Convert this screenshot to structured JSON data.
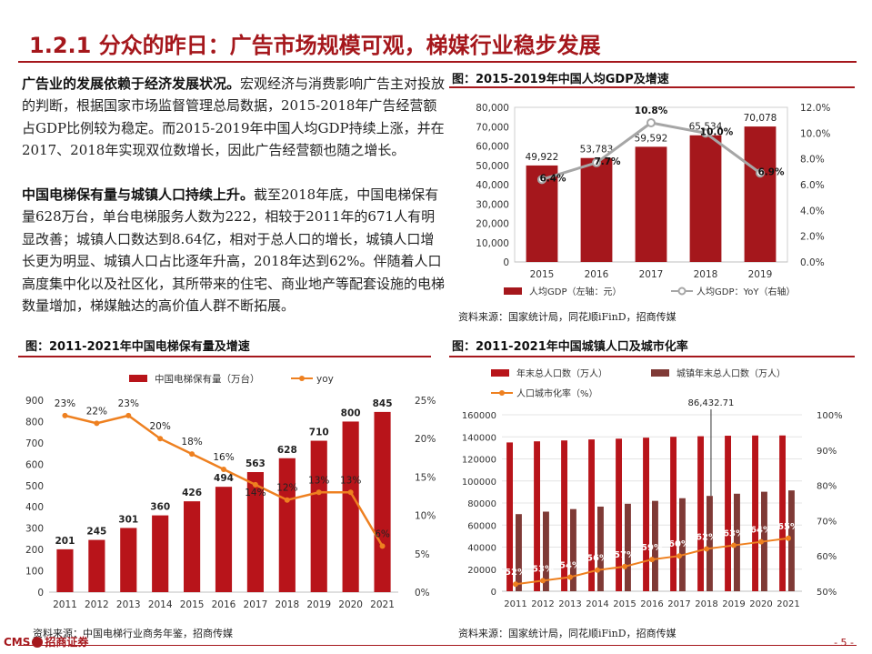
{
  "page": {
    "title": "1.2.1 分众的昨日：广告市场规模可观，梯媒行业稳步发展",
    "page_number": "- 5 -",
    "logo_text": "CMS",
    "logo_name": "招商证券"
  },
  "text": {
    "para1_bold": "广告业的发展依赖于经济发展状况。",
    "para1_rest": "宏观经济与消费影响广告主对投放的判断，根据国家市场监督管理总局数据，2015-2018年广告经营额占GDP比例较为稳定。而2015-2019年中国人均GDP持续上涨，并在2017、2018年实现双位数增长，因此广告经营额也随之增长。",
    "para2_bold": "中国电梯保有量与城镇人口持续上升。",
    "para2_rest": "截至2018年底，中国电梯保有量628万台，单台电梯服务人数为222，相较于2011年的671人有明显改善；城镇人口数达到8.64亿，相对于总人口的增长，城镇人口增长更为明显、城镇人口占比逐年升高，2018年达到62%。伴随着人口高度集中化以及社区化，其所带来的住宅、商业地产等配套设施的电梯数量增加，梯媒触达的高价值人群不断拓展。"
  },
  "chart_data": [
    {
      "id": "gdp",
      "type": "bar",
      "title": "图：2015-2019年中国人均GDP及增速",
      "categories": [
        "2015",
        "2016",
        "2017",
        "2018",
        "2019"
      ],
      "series": [
        {
          "name": "人均GDP（左轴：元）",
          "type": "bar",
          "axis": "left",
          "values": [
            49922,
            53783,
            59592,
            65534,
            70078
          ],
          "labels": [
            "49,922",
            "53,783",
            "59,592",
            "65,534",
            "70,078"
          ],
          "color": "#a5171c"
        },
        {
          "name": "人均GDP：YoY（右轴）",
          "type": "line",
          "axis": "right",
          "values": [
            6.4,
            7.7,
            10.8,
            10.0,
            6.9
          ],
          "labels": [
            "6.4%",
            "7.7%",
            "10.8%",
            "10.0%",
            "6.9%"
          ],
          "color": "#a6a6a6"
        }
      ],
      "ylim_left": [
        0,
        80000
      ],
      "ylim_right": [
        0,
        12
      ],
      "yticks_left": [
        "0",
        "10,000",
        "20,000",
        "30,000",
        "40,000",
        "50,000",
        "60,000",
        "70,000",
        "80,000"
      ],
      "yticks_right": [
        "0.0%",
        "2.0%",
        "4.0%",
        "6.0%",
        "8.0%",
        "10.0%",
        "12.0%"
      ],
      "legend_position": "bottom",
      "source": "资料来源：国家统计局，同花顺iFinD，招商传媒"
    },
    {
      "id": "elevator",
      "type": "bar",
      "title": "图：2011-2021年中国电梯保有量及增速",
      "categories": [
        "2011",
        "2012",
        "2013",
        "2014",
        "2015",
        "2016",
        "2017",
        "2018",
        "2019",
        "2020",
        "2021"
      ],
      "series": [
        {
          "name": "中国电梯保有量（万台）",
          "type": "bar",
          "axis": "left",
          "values": [
            201,
            245,
            301,
            360,
            426,
            494,
            563,
            628,
            710,
            800,
            845
          ],
          "labels": [
            "201",
            "245",
            "301",
            "360",
            "426",
            "494",
            "563",
            "628",
            "710",
            "800",
            "845"
          ],
          "color": "#b8141a"
        },
        {
          "name": "yoy",
          "type": "line",
          "axis": "right",
          "values": [
            23,
            22,
            23,
            20,
            18,
            16,
            14,
            12,
            13,
            13,
            6
          ],
          "labels": [
            "23%",
            "22%",
            "23%",
            "20%",
            "18%",
            "16%",
            "14%",
            "12%",
            "13%",
            "13%",
            "6%"
          ],
          "color": "#ee8020"
        }
      ],
      "ylim_left": [
        0,
        900
      ],
      "ylim_right": [
        0,
        25
      ],
      "yticks_left": [
        "0",
        "100",
        "200",
        "300",
        "400",
        "500",
        "600",
        "700",
        "800",
        "900"
      ],
      "yticks_right": [
        "0%",
        "5%",
        "10%",
        "15%",
        "20%",
        "25%"
      ],
      "legend_position": "top",
      "source": "资料来源：中国电梯行业商务年鉴，招商传媒"
    },
    {
      "id": "urban",
      "type": "bar",
      "title": "图：2011-2021年中国城镇人口及城市化率",
      "categories": [
        "2011",
        "2012",
        "2013",
        "2014",
        "2015",
        "2016",
        "2017",
        "2018",
        "2019",
        "2020",
        "2021"
      ],
      "series": [
        {
          "name": "年末总人口数（万人）",
          "type": "bar",
          "axis": "left",
          "values": [
            134916,
            135922,
            136726,
            137646,
            138326,
            139232,
            140011,
            140541,
            141008,
            141212,
            141260
          ],
          "color": "#b8141a"
        },
        {
          "name": "城镇年末总人口数（万人）",
          "type": "bar",
          "axis": "left",
          "values": [
            69927,
            72175,
            74502,
            76738,
            79302,
            81924,
            84343,
            86433,
            88426,
            90220,
            91425
          ],
          "color": "#7f3a36"
        },
        {
          "name": "人口城市化率（%）",
          "type": "line",
          "axis": "right",
          "values": [
            52,
            53,
            54,
            56,
            57,
            59,
            60,
            62,
            63,
            64,
            65
          ],
          "labels": [
            "52%",
            "53%",
            "54%",
            "56%",
            "57%",
            "59%",
            "60%",
            "62%",
            "63%",
            "64%",
            "65%"
          ],
          "color": "#ee8020"
        }
      ],
      "annotation": {
        "label": "86,432.71",
        "category": "2018"
      },
      "ylim_left": [
        0,
        160000
      ],
      "ylim_right": [
        50,
        100
      ],
      "yticks_left": [
        "0",
        "20000",
        "40000",
        "60000",
        "80000",
        "100000",
        "120000",
        "140000",
        "160000"
      ],
      "yticks_right": [
        "50%",
        "60%",
        "70%",
        "80%",
        "90%",
        "100%"
      ],
      "legend_position": "top",
      "source": "资料来源：国家统计局，同花顺iFinD，招商传媒"
    }
  ]
}
